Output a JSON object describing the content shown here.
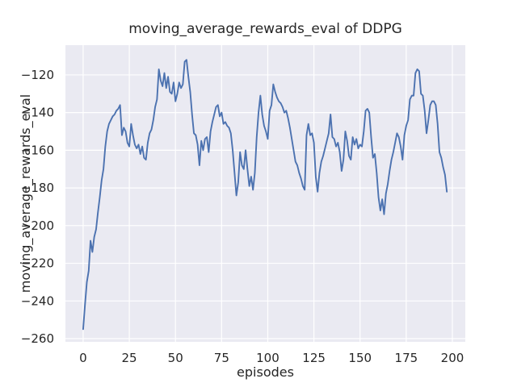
{
  "chart_data": {
    "type": "line",
    "title": "moving_average_rewards_eval of DDPG",
    "xlabel": "episodes",
    "ylabel": "moving_average_rewards_eval",
    "series_name": "moving_average_rewards_eval",
    "x_start": 0,
    "x_step": 1,
    "values": [
      -255,
      -242,
      -230,
      -224,
      -208,
      -214,
      -206,
      -202,
      -193,
      -185,
      -176,
      -170,
      -158,
      -150,
      -146,
      -144,
      -142,
      -141,
      -139,
      -138,
      -136,
      -152,
      -148,
      -150,
      -156,
      -158,
      -146,
      -152,
      -157,
      -159,
      -157,
      -162,
      -158,
      -164,
      -165,
      -156,
      -151,
      -149,
      -144,
      -137,
      -133,
      -117,
      -123,
      -126,
      -119,
      -127,
      -121,
      -129,
      -130,
      -124,
      -134,
      -130,
      -124,
      -127,
      -125,
      -113,
      -112,
      -121,
      -129,
      -141,
      -151,
      -152,
      -157,
      -168,
      -155,
      -160,
      -154,
      -153,
      -161,
      -150,
      -145,
      -141,
      -137,
      -136,
      -142,
      -140,
      -146,
      -145,
      -147,
      -148,
      -151,
      -160,
      -172,
      -184,
      -177,
      -161,
      -168,
      -170,
      -160,
      -170,
      -179,
      -174,
      -181,
      -172,
      -153,
      -140,
      -131,
      -141,
      -147,
      -150,
      -154,
      -139,
      -136,
      -125,
      -129,
      -132,
      -134,
      -135,
      -137,
      -140,
      -139,
      -143,
      -148,
      -154,
      -160,
      -166,
      -168,
      -172,
      -175,
      -179,
      -181,
      -152,
      -146,
      -152,
      -151,
      -156,
      -174,
      -182,
      -172,
      -166,
      -163,
      -159,
      -155,
      -151,
      -141,
      -153,
      -154,
      -158,
      -156,
      -161,
      -171,
      -165,
      -150,
      -155,
      -163,
      -165,
      -153,
      -157,
      -154,
      -159,
      -157,
      -158,
      -150,
      -139,
      -138,
      -140,
      -153,
      -164,
      -162,
      -172,
      -185,
      -192,
      -186,
      -194,
      -183,
      -178,
      -171,
      -165,
      -161,
      -156,
      -151,
      -153,
      -158,
      -165,
      -152,
      -147,
      -144,
      -133,
      -131,
      -131,
      -119,
      -117,
      -118,
      -130,
      -131,
      -139,
      -151,
      -144,
      -136,
      -134,
      -134,
      -136,
      -146,
      -161,
      -164,
      -169,
      -173,
      -182
    ],
    "xlim": [
      -9.6,
      207.0
    ],
    "ylim": [
      -261.7,
      -104.2
    ],
    "xticks": [
      0,
      25,
      50,
      75,
      100,
      125,
      150,
      175,
      200
    ],
    "yticks": [
      -120,
      -140,
      -160,
      -180,
      -200,
      -220,
      -240,
      -260
    ],
    "grid": true,
    "legend": false,
    "colors": {
      "line": "#4C72B0",
      "plot_background": "#EAEAF2",
      "grid": "#FFFFFF",
      "text": "#262626",
      "figure_background": "#FFFFFF"
    }
  }
}
